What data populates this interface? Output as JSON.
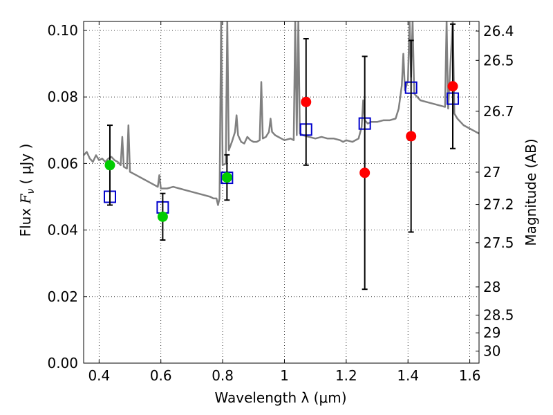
{
  "chart_data": {
    "type": "scatter",
    "xlabel": "Wavelength  λ (μm)",
    "ylabel": "Flux  F_ν  ( μJy )",
    "ylabel_parts": {
      "prefix": "Flux  ",
      "symbol": "F",
      "subscript": "ν",
      "suffix": "  ( μJy )"
    },
    "y2label": "Magnitude (AB)",
    "xlim": [
      0.35,
      1.63
    ],
    "ylim": [
      0.0,
      0.1027
    ],
    "grid": true,
    "xticks": [
      0.4,
      0.6,
      0.8,
      1.0,
      1.2,
      1.4,
      1.6
    ],
    "xtick_labels": [
      "0.4",
      "0.6",
      "0.8",
      "1",
      "1.2",
      "1.4",
      "1.6"
    ],
    "yticks": [
      0.0,
      0.02,
      0.04,
      0.06,
      0.08,
      0.1
    ],
    "ytick_labels": [
      "0.00",
      "0.02",
      "0.04",
      "0.06",
      "0.08",
      "0.10"
    ],
    "mag_ticks": [
      {
        "label": "26.4",
        "flux": 0.0998
      },
      {
        "label": "26.5",
        "flux": 0.091
      },
      {
        "label": "26.7",
        "flux": 0.0757
      },
      {
        "label": "27",
        "flux": 0.0574
      },
      {
        "label": "27.2",
        "flux": 0.0477
      },
      {
        "label": "27.5",
        "flux": 0.0362
      },
      {
        "label": "28",
        "flux": 0.0229
      },
      {
        "label": "28.5",
        "flux": 0.0144
      },
      {
        "label": "29",
        "flux": 0.0091
      },
      {
        "label": "30",
        "flux": 0.0036
      }
    ],
    "series": [
      {
        "name": "model spectrum",
        "kind": "line",
        "color": "#808080",
        "points": [
          [
            0.35,
            0.0625
          ],
          [
            0.36,
            0.0635
          ],
          [
            0.37,
            0.0615
          ],
          [
            0.38,
            0.0605
          ],
          [
            0.39,
            0.0625
          ],
          [
            0.4,
            0.061
          ],
          [
            0.41,
            0.0615
          ],
          [
            0.42,
            0.0605
          ],
          [
            0.43,
            0.0615
          ],
          [
            0.44,
            0.062
          ],
          [
            0.45,
            0.061
          ],
          [
            0.46,
            0.0605
          ],
          [
            0.47,
            0.0595
          ],
          [
            0.475,
            0.068
          ],
          [
            0.48,
            0.059
          ],
          [
            0.49,
            0.0585
          ],
          [
            0.495,
            0.0715
          ],
          [
            0.5,
            0.0575
          ],
          [
            0.52,
            0.0565
          ],
          [
            0.54,
            0.0555
          ],
          [
            0.56,
            0.0545
          ],
          [
            0.58,
            0.0535
          ],
          [
            0.59,
            0.053
          ],
          [
            0.595,
            0.0565
          ],
          [
            0.6,
            0.0525
          ],
          [
            0.62,
            0.0525
          ],
          [
            0.64,
            0.053
          ],
          [
            0.66,
            0.0525
          ],
          [
            0.68,
            0.052
          ],
          [
            0.7,
            0.0515
          ],
          [
            0.72,
            0.051
          ],
          [
            0.74,
            0.0505
          ],
          [
            0.76,
            0.05
          ],
          [
            0.77,
            0.0495
          ],
          [
            0.78,
            0.0495
          ],
          [
            0.785,
            0.0475
          ],
          [
            0.79,
            0.0495
          ],
          [
            0.795,
            0.103
          ],
          [
            0.8,
            0.0595
          ],
          [
            0.81,
            0.06
          ],
          [
            0.815,
            0.103
          ],
          [
            0.82,
            0.064
          ],
          [
            0.83,
            0.0665
          ],
          [
            0.84,
            0.0695
          ],
          [
            0.845,
            0.0745
          ],
          [
            0.85,
            0.0685
          ],
          [
            0.86,
            0.0665
          ],
          [
            0.87,
            0.066
          ],
          [
            0.88,
            0.068
          ],
          [
            0.89,
            0.067
          ],
          [
            0.9,
            0.0665
          ],
          [
            0.91,
            0.0665
          ],
          [
            0.92,
            0.067
          ],
          [
            0.925,
            0.0845
          ],
          [
            0.93,
            0.0675
          ],
          [
            0.94,
            0.068
          ],
          [
            0.95,
            0.0695
          ],
          [
            0.955,
            0.0735
          ],
          [
            0.96,
            0.0695
          ],
          [
            0.97,
            0.0685
          ],
          [
            0.98,
            0.068
          ],
          [
            0.99,
            0.0675
          ],
          [
            1.0,
            0.067
          ],
          [
            1.02,
            0.0675
          ],
          [
            1.03,
            0.067
          ],
          [
            1.035,
            0.103
          ],
          [
            1.04,
            0.0685
          ],
          [
            1.045,
            0.103
          ],
          [
            1.05,
            0.069
          ],
          [
            1.06,
            0.0685
          ],
          [
            1.08,
            0.068
          ],
          [
            1.1,
            0.0675
          ],
          [
            1.12,
            0.068
          ],
          [
            1.14,
            0.0675
          ],
          [
            1.16,
            0.0675
          ],
          [
            1.18,
            0.067
          ],
          [
            1.19,
            0.0665
          ],
          [
            1.2,
            0.067
          ],
          [
            1.22,
            0.0665
          ],
          [
            1.24,
            0.0675
          ],
          [
            1.25,
            0.071
          ],
          [
            1.255,
            0.079
          ],
          [
            1.26,
            0.073
          ],
          [
            1.27,
            0.072
          ],
          [
            1.28,
            0.0725
          ],
          [
            1.3,
            0.0725
          ],
          [
            1.32,
            0.073
          ],
          [
            1.34,
            0.073
          ],
          [
            1.36,
            0.0735
          ],
          [
            1.37,
            0.0765
          ],
          [
            1.38,
            0.0835
          ],
          [
            1.385,
            0.093
          ],
          [
            1.39,
            0.082
          ],
          [
            1.4,
            0.085
          ],
          [
            1.405,
            0.103
          ],
          [
            1.41,
            0.086
          ],
          [
            1.415,
            0.103
          ],
          [
            1.42,
            0.081
          ],
          [
            1.44,
            0.079
          ],
          [
            1.46,
            0.0785
          ],
          [
            1.48,
            0.078
          ],
          [
            1.5,
            0.0775
          ],
          [
            1.52,
            0.077
          ],
          [
            1.525,
            0.103
          ],
          [
            1.53,
            0.0765
          ],
          [
            1.545,
            0.103
          ],
          [
            1.55,
            0.075
          ],
          [
            1.56,
            0.0735
          ],
          [
            1.57,
            0.0725
          ],
          [
            1.58,
            0.0715
          ],
          [
            1.59,
            0.071
          ],
          [
            1.6,
            0.0705
          ],
          [
            1.61,
            0.07
          ],
          [
            1.62,
            0.0695
          ],
          [
            1.63,
            0.069
          ]
        ]
      },
      {
        "name": "model band flux",
        "kind": "marker",
        "marker": "open-square",
        "color": "#0000cc",
        "points": [
          [
            0.435,
            0.05
          ],
          [
            0.606,
            0.0468
          ],
          [
            0.814,
            0.0557
          ],
          [
            1.07,
            0.0702
          ],
          [
            1.26,
            0.072
          ],
          [
            1.41,
            0.0828
          ],
          [
            1.545,
            0.0795
          ]
        ]
      },
      {
        "name": "observed flux (optical)",
        "kind": "marker",
        "marker": "filled-circle",
        "color": "#00cc00",
        "points": [
          [
            0.435,
            0.0595,
            0.012
          ],
          [
            0.606,
            0.044,
            0.007
          ],
          [
            0.814,
            0.0558,
            0.0068
          ]
        ]
      },
      {
        "name": "observed flux (near-IR)",
        "kind": "marker",
        "marker": "filled-circle",
        "color": "#ff0000",
        "points": [
          [
            1.07,
            0.0785,
            0.019
          ],
          [
            1.26,
            0.0572,
            0.035
          ],
          [
            1.41,
            0.0682,
            0.0288
          ],
          [
            1.545,
            0.0832,
            0.0187
          ]
        ]
      }
    ]
  }
}
